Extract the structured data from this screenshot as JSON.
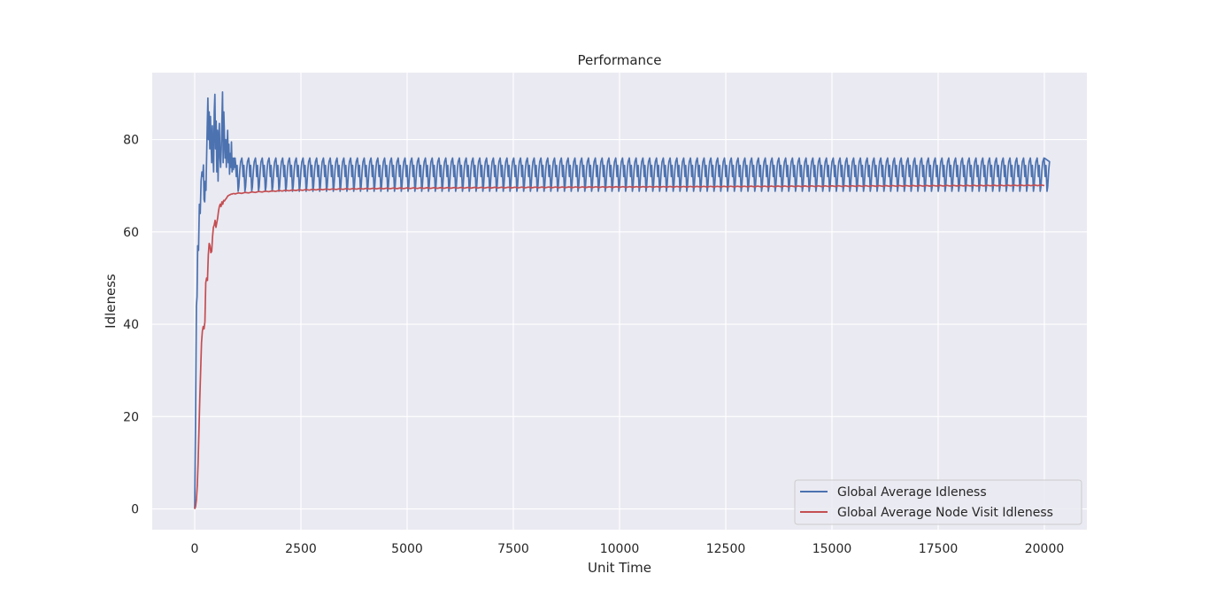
{
  "chart_data": {
    "type": "line",
    "title": "Performance",
    "xlabel": "Unit Time",
    "ylabel": "Idleness",
    "xlim": [
      -1000,
      21000
    ],
    "ylim": [
      -4.5,
      94.5
    ],
    "xticks": [
      0,
      2500,
      5000,
      7500,
      10000,
      12500,
      15000,
      17500,
      20000
    ],
    "xtick_labels": [
      "0",
      "2500",
      "5000",
      "7500",
      "10000",
      "12500",
      "15000",
      "17500",
      "20000"
    ],
    "yticks": [
      0,
      20,
      40,
      60,
      80
    ],
    "ytick_labels": [
      "0",
      "20",
      "40",
      "60",
      "80"
    ],
    "grid": true,
    "legend_position": "lower-right",
    "background": "#eaeaf2",
    "series": [
      {
        "name": "Global Average Idleness",
        "color": "#4c72b0",
        "steady_state": {
          "from_x": 950,
          "to_x": 20000,
          "period": 160,
          "min": 68.8,
          "max": 76.0
        },
        "points": [
          [
            0,
            0
          ],
          [
            20,
            20
          ],
          [
            40,
            44
          ],
          [
            55,
            46
          ],
          [
            70,
            57
          ],
          [
            90,
            56
          ],
          [
            110,
            66
          ],
          [
            130,
            64
          ],
          [
            150,
            71
          ],
          [
            170,
            73
          ],
          [
            190,
            72
          ],
          [
            205,
            74.5
          ],
          [
            220,
            67
          ],
          [
            235,
            66.5
          ],
          [
            250,
            71
          ],
          [
            265,
            69
          ],
          [
            280,
            76
          ],
          [
            295,
            83
          ],
          [
            310,
            89
          ],
          [
            325,
            80
          ],
          [
            340,
            86
          ],
          [
            355,
            78
          ],
          [
            370,
            85
          ],
          [
            385,
            79
          ],
          [
            400,
            75
          ],
          [
            415,
            83
          ],
          [
            430,
            77
          ],
          [
            445,
            73
          ],
          [
            460,
            86
          ],
          [
            475,
            89.8
          ],
          [
            490,
            78
          ],
          [
            505,
            84
          ],
          [
            520,
            73
          ],
          [
            535,
            82
          ],
          [
            550,
            71
          ],
          [
            565,
            80
          ],
          [
            580,
            83.5
          ],
          [
            595,
            76
          ],
          [
            610,
            74
          ],
          [
            625,
            78
          ],
          [
            640,
            84
          ],
          [
            655,
            90.3
          ],
          [
            670,
            75
          ],
          [
            685,
            86
          ],
          [
            700,
            81
          ],
          [
            715,
            76
          ],
          [
            730,
            80
          ],
          [
            745,
            74
          ],
          [
            760,
            78
          ],
          [
            775,
            82
          ],
          [
            790,
            75
          ],
          [
            805,
            79
          ],
          [
            820,
            72.5
          ],
          [
            835,
            77
          ],
          [
            850,
            74
          ],
          [
            865,
            79.5
          ],
          [
            880,
            73
          ],
          [
            895,
            76
          ],
          [
            910,
            73.5
          ],
          [
            925,
            76
          ],
          [
            940,
            74
          ]
        ]
      },
      {
        "name": "Global Average Node Visit Idleness",
        "color": "#c44e52",
        "steady_state": {
          "from_x": 950,
          "to_x": 20000,
          "start": 68.3,
          "end": 70.1
        },
        "points": [
          [
            0,
            0
          ],
          [
            20,
            0.5
          ],
          [
            40,
            2
          ],
          [
            60,
            5
          ],
          [
            80,
            10
          ],
          [
            100,
            17
          ],
          [
            120,
            24
          ],
          [
            140,
            30
          ],
          [
            160,
            36
          ],
          [
            180,
            38.5
          ],
          [
            200,
            39.5
          ],
          [
            220,
            39
          ],
          [
            240,
            40.5
          ],
          [
            260,
            49
          ],
          [
            280,
            50
          ],
          [
            300,
            49.5
          ],
          [
            320,
            55
          ],
          [
            340,
            57.5
          ],
          [
            360,
            57
          ],
          [
            380,
            55.5
          ],
          [
            400,
            55.8
          ],
          [
            420,
            59
          ],
          [
            440,
            61
          ],
          [
            460,
            61.5
          ],
          [
            480,
            62.5
          ],
          [
            500,
            61
          ],
          [
            520,
            62
          ],
          [
            540,
            63
          ],
          [
            560,
            64.5
          ],
          [
            580,
            65.5
          ],
          [
            600,
            66
          ],
          [
            620,
            65.5
          ],
          [
            640,
            66.5
          ],
          [
            660,
            66
          ],
          [
            680,
            66.8
          ],
          [
            700,
            66.7
          ],
          [
            720,
            67
          ],
          [
            740,
            67.2
          ],
          [
            760,
            67.5
          ],
          [
            780,
            67.8
          ],
          [
            800,
            67.9
          ],
          [
            820,
            68
          ],
          [
            840,
            68.1
          ],
          [
            860,
            68.2
          ],
          [
            880,
            68.2
          ],
          [
            900,
            68.3
          ],
          [
            920,
            68.3
          ],
          [
            940,
            68.3
          ]
        ]
      }
    ]
  }
}
